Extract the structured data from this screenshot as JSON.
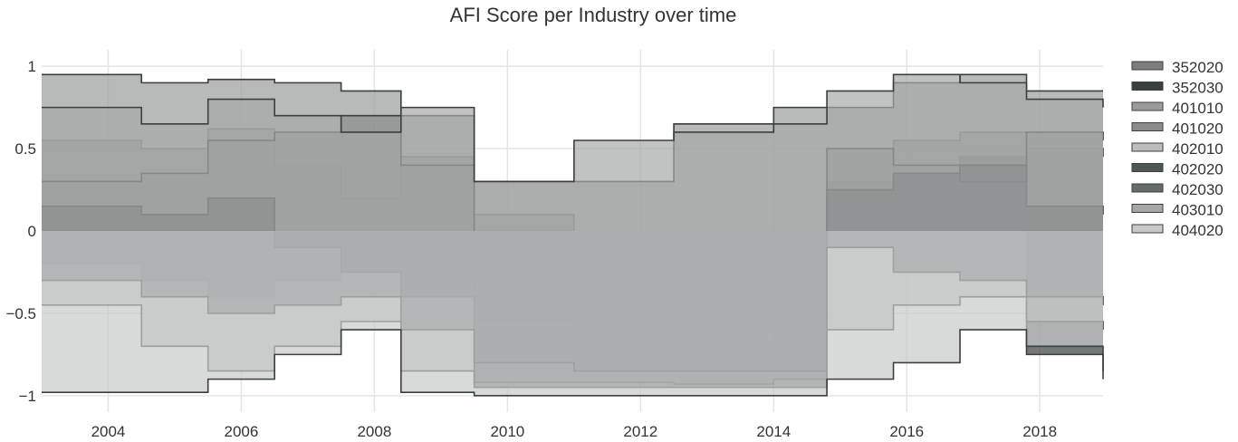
{
  "chart_data": {
    "type": "area",
    "title": "AFI Score per Industry over time",
    "xlabel": "",
    "ylabel": "",
    "xlim": [
      2003.0,
      2018.95
    ],
    "ylim": [
      -1.1,
      1.1
    ],
    "x_ticks": [
      2004,
      2006,
      2008,
      2010,
      2012,
      2014,
      2016,
      2018
    ],
    "y_ticks": [
      1,
      0.5,
      0,
      -0.5,
      -1
    ],
    "y_tick_labels": [
      "1",
      "0.5",
      "0",
      "−0.5",
      "−1"
    ],
    "grid": true,
    "legend_position": "right",
    "fill_to": 0,
    "series": [
      {
        "name": "352020",
        "color": "#7d7d7d",
        "x": [
          2003.0,
          2004.5,
          2005.5,
          2006.5,
          2007.5,
          2008.4,
          2009.5,
          2011.0,
          2012.5,
          2014.0,
          2014.8,
          2015.8,
          2016.8,
          2017.8,
          2018.95
        ],
        "y": [
          0.55,
          0.5,
          0.62,
          0.4,
          0.2,
          0.45,
          0.1,
          -0.05,
          -0.25,
          -0.4,
          0.2,
          0.55,
          0.6,
          0.5,
          0.45
        ]
      },
      {
        "name": "352030",
        "color": "#3a3f3f",
        "x": [
          2003.0,
          2004.5,
          2005.5,
          2006.5,
          2007.5,
          2008.4,
          2009.5,
          2011.0,
          2012.5,
          2014.0,
          2014.8,
          2015.8,
          2016.8,
          2017.8,
          2018.95
        ],
        "y": [
          -0.2,
          -0.3,
          -0.4,
          -0.3,
          -0.25,
          -0.3,
          -0.55,
          -0.6,
          -0.6,
          -0.65,
          0.3,
          0.35,
          0.45,
          -0.75,
          -0.9
        ]
      },
      {
        "name": "401010",
        "color": "#9a9c9c",
        "x": [
          2003.0,
          2004.5,
          2005.5,
          2006.5,
          2007.5,
          2008.4,
          2009.5,
          2011.0,
          2012.5,
          2014.0,
          2014.8,
          2015.8,
          2016.8,
          2017.8,
          2018.95
        ],
        "y": [
          0.95,
          0.9,
          0.92,
          0.9,
          0.85,
          0.7,
          0.3,
          0.3,
          0.65,
          0.75,
          0.75,
          0.9,
          0.95,
          0.85,
          0.85
        ]
      },
      {
        "name": "401020",
        "color": "#8a8c8c",
        "x": [
          2003.0,
          2004.5,
          2005.5,
          2006.5,
          2007.5,
          2008.4,
          2009.5,
          2011.0,
          2012.5,
          2014.0,
          2014.8,
          2015.8,
          2016.8,
          2017.8,
          2018.95
        ],
        "y": [
          0.3,
          0.35,
          0.55,
          0.6,
          0.7,
          0.4,
          -0.4,
          -0.45,
          -0.55,
          -0.6,
          0.5,
          0.4,
          0.3,
          0.6,
          0.55
        ]
      },
      {
        "name": "402010",
        "color": "#bcbebe",
        "x": [
          2003.0,
          2004.5,
          2005.5,
          2006.5,
          2007.5,
          2008.4,
          2009.5,
          2011.0,
          2012.5,
          2014.0,
          2014.8,
          2015.8,
          2016.8,
          2017.8,
          2018.95
        ],
        "y": [
          -0.45,
          -0.7,
          -0.85,
          -0.7,
          -0.55,
          -0.85,
          -0.92,
          -0.92,
          -0.93,
          -0.9,
          -0.6,
          -0.45,
          -0.4,
          -0.55,
          -0.6
        ]
      },
      {
        "name": "402020",
        "color": "#4f5656",
        "x": [
          2003.0,
          2004.5,
          2005.5,
          2006.5,
          2007.5,
          2008.4,
          2009.5,
          2011.0,
          2012.5,
          2014.0,
          2014.8,
          2015.8,
          2016.8,
          2017.8,
          2018.95
        ],
        "y": [
          0.15,
          0.1,
          0.2,
          -0.1,
          -0.25,
          -0.4,
          -0.95,
          -0.95,
          -0.95,
          -0.95,
          0.25,
          0.35,
          0.4,
          0.15,
          0.1
        ]
      },
      {
        "name": "402030",
        "color": "#666b6b",
        "x": [
          2003.0,
          2004.5,
          2005.5,
          2006.5,
          2007.5,
          2008.4,
          2009.5,
          2011.0,
          2012.5,
          2014.0,
          2014.8,
          2015.8,
          2016.8,
          2017.8,
          2018.95
        ],
        "y": [
          -0.3,
          -0.4,
          -0.5,
          -0.45,
          -0.4,
          -0.6,
          -0.8,
          -0.85,
          -0.85,
          -0.85,
          -0.1,
          -0.25,
          -0.3,
          -0.4,
          -0.45
        ]
      },
      {
        "name": "403010",
        "color": "#a6a8a8",
        "x": [
          2003.0,
          2004.5,
          2005.5,
          2006.5,
          2007.5,
          2008.4,
          2009.5,
          2011.0,
          2012.5,
          2014.0,
          2014.8,
          2015.8,
          2016.8,
          2017.8,
          2018.95
        ],
        "y": [
          0.75,
          0.65,
          0.8,
          0.7,
          0.6,
          0.75,
          0.3,
          0.55,
          0.6,
          0.65,
          0.85,
          0.95,
          0.9,
          0.8,
          0.75
        ]
      },
      {
        "name": "404020",
        "color": "#c8caca",
        "x": [
          2003.0,
          2004.5,
          2005.5,
          2006.5,
          2007.5,
          2008.4,
          2009.5,
          2011.0,
          2012.5,
          2014.0,
          2014.8,
          2015.8,
          2016.8,
          2017.8,
          2018.95
        ],
        "y": [
          -0.98,
          -0.98,
          -0.9,
          -0.75,
          -0.6,
          -0.98,
          -1.0,
          -1.0,
          -1.0,
          -1.0,
          -0.9,
          -0.8,
          -0.6,
          -0.7,
          -0.85
        ]
      }
    ]
  }
}
